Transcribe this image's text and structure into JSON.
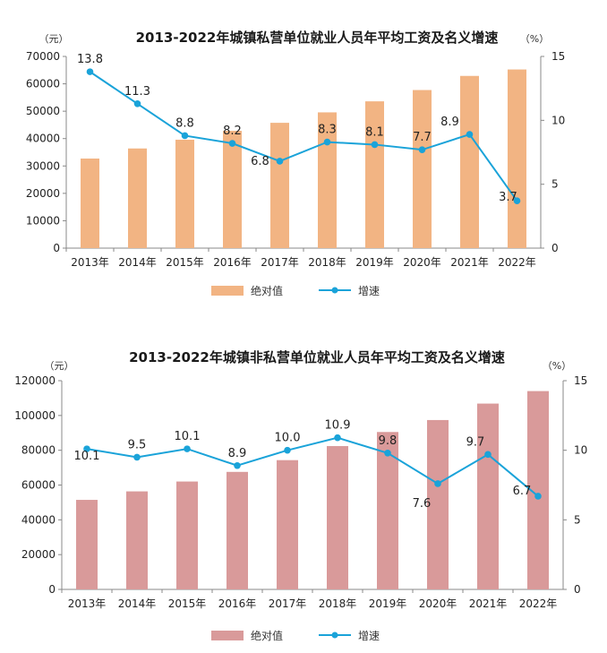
{
  "chart_data": [
    {
      "type": "bar",
      "title": "2013-2022年城镇私营单位就业人员年平均工资及名义增速",
      "y_unit": "（元）",
      "y2_unit": "（%）",
      "categories": [
        "2013年",
        "2014年",
        "2015年",
        "2016年",
        "2017年",
        "2018年",
        "2019年",
        "2020年",
        "2021年",
        "2022年"
      ],
      "series": [
        {
          "name": "绝对值",
          "type": "bar",
          "color": "#f2b483",
          "values": [
            32706,
            36390,
            39589,
            42833,
            45761,
            49575,
            53604,
            57727,
            62884,
            65237
          ]
        },
        {
          "name": "增速",
          "type": "line",
          "axis": "right",
          "color": "#1aa3d9",
          "values": [
            13.8,
            11.3,
            8.8,
            8.2,
            6.8,
            8.3,
            8.1,
            7.7,
            8.9,
            3.7
          ],
          "labels": [
            "13.8",
            "11.3",
            "8.8",
            "8.2",
            "6.8",
            "8.3",
            "8.1",
            "7.7",
            "8.9",
            "3.7"
          ]
        }
      ],
      "ylim": [
        0,
        70000
      ],
      "yticks": [
        "0",
        "10000",
        "20000",
        "30000",
        "40000",
        "50000",
        "60000",
        "70000"
      ],
      "y2lim": [
        0,
        15
      ],
      "y2ticks": [
        "0",
        "5",
        "10",
        "15"
      ],
      "legend_position": "bottom"
    },
    {
      "type": "bar",
      "title": "2013-2022年城镇非私营单位就业人员年平均工资及名义增速",
      "y_unit": "（元）",
      "y2_unit": "（%）",
      "categories": [
        "2013年",
        "2014年",
        "2015年",
        "2016年",
        "2017年",
        "2018年",
        "2019年",
        "2020年",
        "2021年",
        "2022年"
      ],
      "series": [
        {
          "name": "绝对值",
          "type": "bar",
          "color": "#d99a9a",
          "values": [
            51483,
            56360,
            62029,
            67569,
            74318,
            82413,
            90501,
            97379,
            106837,
            114029
          ]
        },
        {
          "name": "增速",
          "type": "line",
          "axis": "right",
          "color": "#1aa3d9",
          "values": [
            10.1,
            9.5,
            10.1,
            8.9,
            10.0,
            10.9,
            9.8,
            7.6,
            9.7,
            6.7
          ],
          "labels": [
            "10.1",
            "9.5",
            "10.1",
            "8.9",
            "10.0",
            "10.9",
            "9.8",
            "7.6",
            "9.7",
            "6.7"
          ]
        }
      ],
      "ylim": [
        0,
        120000
      ],
      "yticks": [
        "0",
        "20000",
        "40000",
        "60000",
        "80000",
        "100000",
        "120000"
      ],
      "y2lim": [
        0,
        15
      ],
      "y2ticks": [
        "0",
        "5",
        "10",
        "15"
      ],
      "legend_position": "bottom"
    }
  ]
}
